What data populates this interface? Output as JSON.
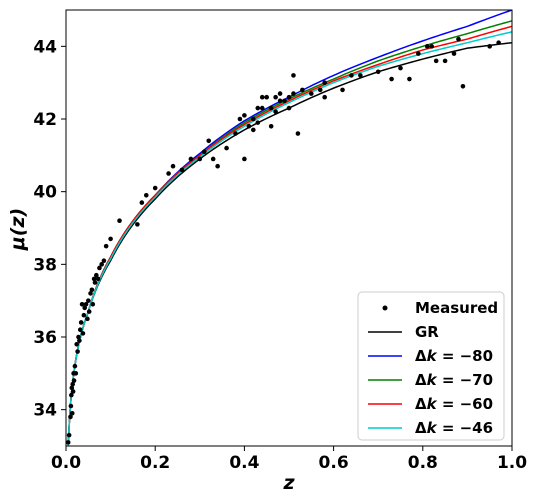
{
  "chart_data": {
    "type": "scatter",
    "xlabel": "z",
    "ylabel": "μ(z)",
    "xlim": [
      0.0,
      1.0
    ],
    "ylim": [
      33.0,
      45.0
    ],
    "xticks": [
      "0.0",
      "0.2",
      "0.4",
      "0.6",
      "0.8",
      "1.0"
    ],
    "yticks": [
      "34",
      "36",
      "38",
      "40",
      "42",
      "44"
    ],
    "xtick_values": [
      0.0,
      0.2,
      0.4,
      0.6,
      0.8,
      1.0
    ],
    "ytick_values": [
      34,
      36,
      38,
      40,
      42,
      44
    ],
    "grid": false,
    "legend_position": "lower-right",
    "measured": {
      "name": "Measured",
      "color": "#000000",
      "points": [
        [
          0.005,
          33.1
        ],
        [
          0.007,
          33.3
        ],
        [
          0.01,
          33.8
        ],
        [
          0.011,
          34.1
        ],
        [
          0.012,
          34.4
        ],
        [
          0.013,
          34.6
        ],
        [
          0.014,
          33.9
        ],
        [
          0.015,
          34.7
        ],
        [
          0.016,
          34.5
        ],
        [
          0.017,
          35.0
        ],
        [
          0.018,
          34.8
        ],
        [
          0.02,
          35.2
        ],
        [
          0.022,
          35.0
        ],
        [
          0.024,
          35.8
        ],
        [
          0.026,
          35.6
        ],
        [
          0.028,
          36.0
        ],
        [
          0.03,
          35.9
        ],
        [
          0.032,
          36.2
        ],
        [
          0.034,
          36.4
        ],
        [
          0.036,
          36.9
        ],
        [
          0.038,
          36.1
        ],
        [
          0.04,
          36.6
        ],
        [
          0.042,
          36.8
        ],
        [
          0.045,
          36.9
        ],
        [
          0.048,
          36.5
        ],
        [
          0.05,
          37.0
        ],
        [
          0.052,
          36.7
        ],
        [
          0.055,
          37.2
        ],
        [
          0.058,
          37.3
        ],
        [
          0.06,
          36.9
        ],
        [
          0.063,
          37.6
        ],
        [
          0.065,
          37.5
        ],
        [
          0.068,
          37.7
        ],
        [
          0.072,
          37.6
        ],
        [
          0.075,
          37.9
        ],
        [
          0.08,
          38.0
        ],
        [
          0.085,
          38.1
        ],
        [
          0.09,
          38.5
        ],
        [
          0.1,
          38.7
        ],
        [
          0.12,
          39.2
        ],
        [
          0.16,
          39.1
        ],
        [
          0.17,
          39.7
        ],
        [
          0.18,
          39.9
        ],
        [
          0.2,
          40.1
        ],
        [
          0.23,
          40.5
        ],
        [
          0.24,
          40.7
        ],
        [
          0.26,
          40.6
        ],
        [
          0.28,
          40.9
        ],
        [
          0.3,
          40.9
        ],
        [
          0.31,
          41.1
        ],
        [
          0.32,
          41.4
        ],
        [
          0.33,
          40.9
        ],
        [
          0.34,
          40.7
        ],
        [
          0.36,
          41.2
        ],
        [
          0.38,
          41.6
        ],
        [
          0.39,
          42.0
        ],
        [
          0.4,
          40.9
        ],
        [
          0.4,
          42.1
        ],
        [
          0.41,
          41.8
        ],
        [
          0.42,
          42.0
        ],
        [
          0.42,
          41.7
        ],
        [
          0.43,
          41.9
        ],
        [
          0.43,
          42.3
        ],
        [
          0.44,
          42.3
        ],
        [
          0.44,
          42.6
        ],
        [
          0.45,
          42.6
        ],
        [
          0.46,
          42.3
        ],
        [
          0.46,
          41.8
        ],
        [
          0.47,
          42.2
        ],
        [
          0.47,
          42.6
        ],
        [
          0.48,
          42.7
        ],
        [
          0.48,
          42.5
        ],
        [
          0.49,
          42.5
        ],
        [
          0.5,
          42.6
        ],
        [
          0.5,
          42.3
        ],
        [
          0.51,
          42.7
        ],
        [
          0.51,
          43.2
        ],
        [
          0.52,
          41.6
        ],
        [
          0.53,
          42.8
        ],
        [
          0.55,
          42.7
        ],
        [
          0.57,
          42.8
        ],
        [
          0.58,
          43.0
        ],
        [
          0.58,
          42.6
        ],
        [
          0.62,
          42.8
        ],
        [
          0.64,
          43.2
        ],
        [
          0.66,
          43.2
        ],
        [
          0.7,
          43.3
        ],
        [
          0.73,
          43.1
        ],
        [
          0.75,
          43.4
        ],
        [
          0.77,
          43.1
        ],
        [
          0.79,
          43.8
        ],
        [
          0.81,
          44.0
        ],
        [
          0.82,
          44.0
        ],
        [
          0.83,
          43.6
        ],
        [
          0.85,
          43.6
        ],
        [
          0.87,
          43.8
        ],
        [
          0.88,
          44.2
        ],
        [
          0.89,
          42.9
        ],
        [
          0.95,
          44.0
        ],
        [
          0.97,
          44.1
        ]
      ]
    },
    "series": [
      {
        "name": "GR",
        "color": "#000000",
        "exponent": 0.3,
        "x": [
          0.005,
          0.05,
          0.1,
          0.2,
          0.3,
          0.4,
          0.5,
          0.6,
          0.7,
          0.8,
          0.9,
          1.0
        ],
        "y": [
          33.0,
          36.7,
          38.1,
          39.8,
          40.9,
          41.7,
          42.3,
          42.85,
          43.3,
          43.65,
          43.95,
          44.1
        ]
      },
      {
        "name": "Δk = −80",
        "label_prefix": "Δ",
        "label_var": "k",
        "label_rest": " = −80",
        "color": "#0000ff",
        "exponent": 0.37,
        "x": [
          0.005,
          0.05,
          0.1,
          0.2,
          0.3,
          0.4,
          0.5,
          0.6,
          0.7,
          0.8,
          0.9,
          1.0
        ],
        "y": [
          33.0,
          36.7,
          38.2,
          39.9,
          41.05,
          41.95,
          42.6,
          43.2,
          43.7,
          44.15,
          44.55,
          45.0
        ]
      },
      {
        "name": "Δk = −70",
        "label_prefix": "Δ",
        "label_var": "k",
        "label_rest": " = −70",
        "color": "#008000",
        "exponent": 0.35,
        "x": [
          0.005,
          0.05,
          0.1,
          0.2,
          0.3,
          0.4,
          0.5,
          0.6,
          0.7,
          0.8,
          0.9,
          1.0
        ],
        "y": [
          33.0,
          36.7,
          38.2,
          39.9,
          41.0,
          41.9,
          42.55,
          43.1,
          43.6,
          44.0,
          44.35,
          44.7
        ]
      },
      {
        "name": "Δk = −60",
        "label_prefix": "Δ",
        "label_var": "k",
        "label_rest": " = −60",
        "color": "#ff0000",
        "exponent": 0.335,
        "x": [
          0.005,
          0.05,
          0.1,
          0.2,
          0.3,
          0.4,
          0.5,
          0.6,
          0.7,
          0.8,
          0.9,
          1.0
        ],
        "y": [
          33.0,
          36.7,
          38.2,
          39.9,
          41.0,
          41.85,
          42.5,
          43.05,
          43.5,
          43.9,
          44.2,
          44.55
        ]
      },
      {
        "name": "Δk = −46",
        "label_prefix": "Δ",
        "label_var": "k",
        "label_rest": " = −46",
        "color": "#00cccc",
        "exponent": 0.32,
        "x": [
          0.005,
          0.05,
          0.1,
          0.2,
          0.3,
          0.4,
          0.5,
          0.6,
          0.7,
          0.8,
          0.9,
          1.0
        ],
        "y": [
          33.0,
          36.7,
          38.15,
          39.85,
          40.95,
          41.8,
          42.45,
          43.0,
          43.45,
          43.8,
          44.1,
          44.4
        ]
      }
    ]
  }
}
